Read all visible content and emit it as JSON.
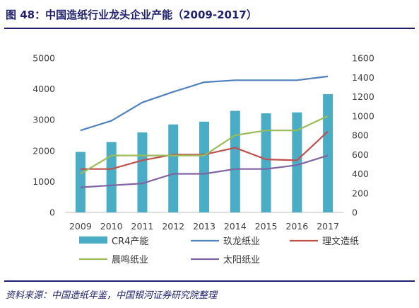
{
  "header": {
    "title": "图 48：中国造纸行业龙头企业产能（2009-2017）"
  },
  "footer": {
    "source": "资料来源：中国造纸年鉴，中国银河证券研究院整理"
  },
  "chart_data": {
    "type": "bar",
    "categories": [
      "2009",
      "2010",
      "2011",
      "2012",
      "2013",
      "2014",
      "2015",
      "2016",
      "2017"
    ],
    "left_axis": {
      "min": 0,
      "max": 5000,
      "ticks": [
        "0",
        "1000",
        "2000",
        "3000",
        "4000",
        "5000"
      ]
    },
    "right_axis": {
      "min": 0,
      "max": 1600,
      "ticks": [
        "0",
        "200",
        "400",
        "600",
        "800",
        "1000",
        "1200",
        "1400",
        "1600"
      ]
    },
    "series": [
      {
        "name": "CR4产能",
        "type": "bar",
        "axis": "left",
        "color": "#4bacc6",
        "values": [
          1960,
          2280,
          2590,
          2850,
          2940,
          3290,
          3210,
          3240,
          3830
        ]
      },
      {
        "name": "玖龙纸业",
        "type": "line",
        "axis": "right",
        "color": "#4f81bd",
        "values": [
          850,
          950,
          1140,
          1250,
          1350,
          1370,
          1370,
          1370,
          1410
        ]
      },
      {
        "name": "理文造纸",
        "type": "line",
        "axis": "right",
        "color": "#c0504d",
        "values": [
          450,
          450,
          540,
          600,
          600,
          670,
          550,
          540,
          840
        ]
      },
      {
        "name": "晨鸣纸业",
        "type": "line",
        "axis": "right",
        "color": "#9bbb59",
        "values": [
          400,
          590,
          590,
          590,
          590,
          800,
          850,
          850,
          1000
        ]
      },
      {
        "name": "太阳纸业",
        "type": "line",
        "axis": "right",
        "color": "#8064a2",
        "values": [
          260,
          280,
          300,
          400,
          400,
          450,
          450,
          490,
          590
        ]
      }
    ],
    "grid": false,
    "legend_position": "bottom"
  }
}
